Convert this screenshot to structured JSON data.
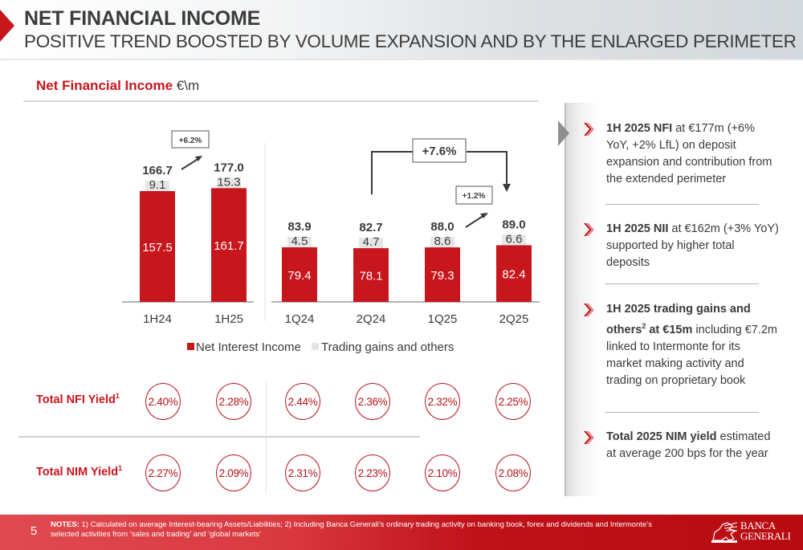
{
  "header": {
    "title": "NET FINANCIAL INCOME",
    "subtitle": "POSITIVE TREND BOOSTED BY VOLUME EXPANSION AND BY THE ENLARGED PERIMETER"
  },
  "section": {
    "title": "Net Financial Income",
    "unit": "€\\m"
  },
  "colors": {
    "nii": "#c8161d",
    "trading": "#e6e6e6",
    "accent": "#c8161d"
  },
  "chart_data": {
    "type": "bar",
    "stacked": true,
    "title": "Net Financial Income",
    "unit": "€\\m",
    "categories": [
      "1H24",
      "1H25",
      "1Q24",
      "2Q24",
      "1Q25",
      "2Q25"
    ],
    "groups": [
      {
        "name": "half-year",
        "categories": [
          "1H24",
          "1H25"
        ]
      },
      {
        "name": "quarterly",
        "categories": [
          "1Q24",
          "2Q24",
          "1Q25",
          "2Q25"
        ]
      }
    ],
    "series": [
      {
        "name": "Net Interest Income",
        "values": [
          157.5,
          161.7,
          79.4,
          78.1,
          79.3,
          82.4
        ]
      },
      {
        "name": "Trading gains and others",
        "values": [
          9.1,
          15.3,
          4.5,
          4.7,
          8.6,
          6.6
        ]
      }
    ],
    "totals": [
      166.7,
      177.0,
      83.9,
      82.7,
      88.0,
      89.0
    ],
    "total_labels": [
      "166.7",
      "177.0",
      "83.9",
      "82.7",
      "88.0",
      "89.0"
    ],
    "nii_labels": [
      "157.5",
      "161.7",
      "79.4",
      "78.1",
      "79.3",
      "82.4"
    ],
    "trading_labels": [
      "9.1",
      "15.3",
      "4.5",
      "4.7",
      "8.6",
      "6.6"
    ],
    "annotations": [
      {
        "text": "+6.2%",
        "from": "1H24",
        "to": "1H25",
        "style": "arrow"
      },
      {
        "text": "+7.6%",
        "from": "2Q24",
        "to": "2Q25",
        "style": "bracket"
      },
      {
        "text": "+1.2%",
        "from": "1Q25",
        "to": "2Q25",
        "style": "arrow"
      }
    ],
    "legend": [
      "Net Interest Income",
      "Trading gains and others"
    ],
    "legend_position": "bottom",
    "xlabel": "",
    "ylabel": "",
    "grid": false
  },
  "yields": {
    "nfi": {
      "label": "Total NFI Yield",
      "sup": "1",
      "values": [
        "2.40%",
        "2.28%",
        "2.44%",
        "2.36%",
        "2.32%",
        "2.25%"
      ]
    },
    "nim": {
      "label": "Total NIM Yield",
      "sup": "1",
      "values": [
        "2.27%",
        "2.09%",
        "2.31%",
        "2.23%",
        "2.10%",
        "2.08%"
      ]
    }
  },
  "bullets": [
    {
      "bold": "1H 2025 NFI",
      "text": " at €177m (+6% YoY, +2% LfL) on deposit expansion and contribution from the extended perimeter"
    },
    {
      "bold": "1H 2025 NII",
      "text": " at €162m (+3% YoY) supported by higher total deposits"
    },
    {
      "bold": "1H 2025 trading gains and others",
      "sup": "2",
      "bold2": " at €15m",
      "text": " including €7.2m linked to Intermonte for its market making activity and trading on proprietary book"
    },
    {
      "bold": "Total 2025 NIM yield",
      "text": " estimated at average 200 bps for the year"
    }
  ],
  "footer": {
    "page": "5",
    "notes_label": "NOTES:",
    "notes": " 1) Calculated on average Interest-bearing Assets/Liabilities; 2) Including Banca Generali’s ordinary trading activity on banking book, forex and dividends and Intermonte’s selected activities from ‘sales and trading’ and ‘global markets’",
    "logo_line1": "BANCA",
    "logo_line2": "GENERALI"
  }
}
